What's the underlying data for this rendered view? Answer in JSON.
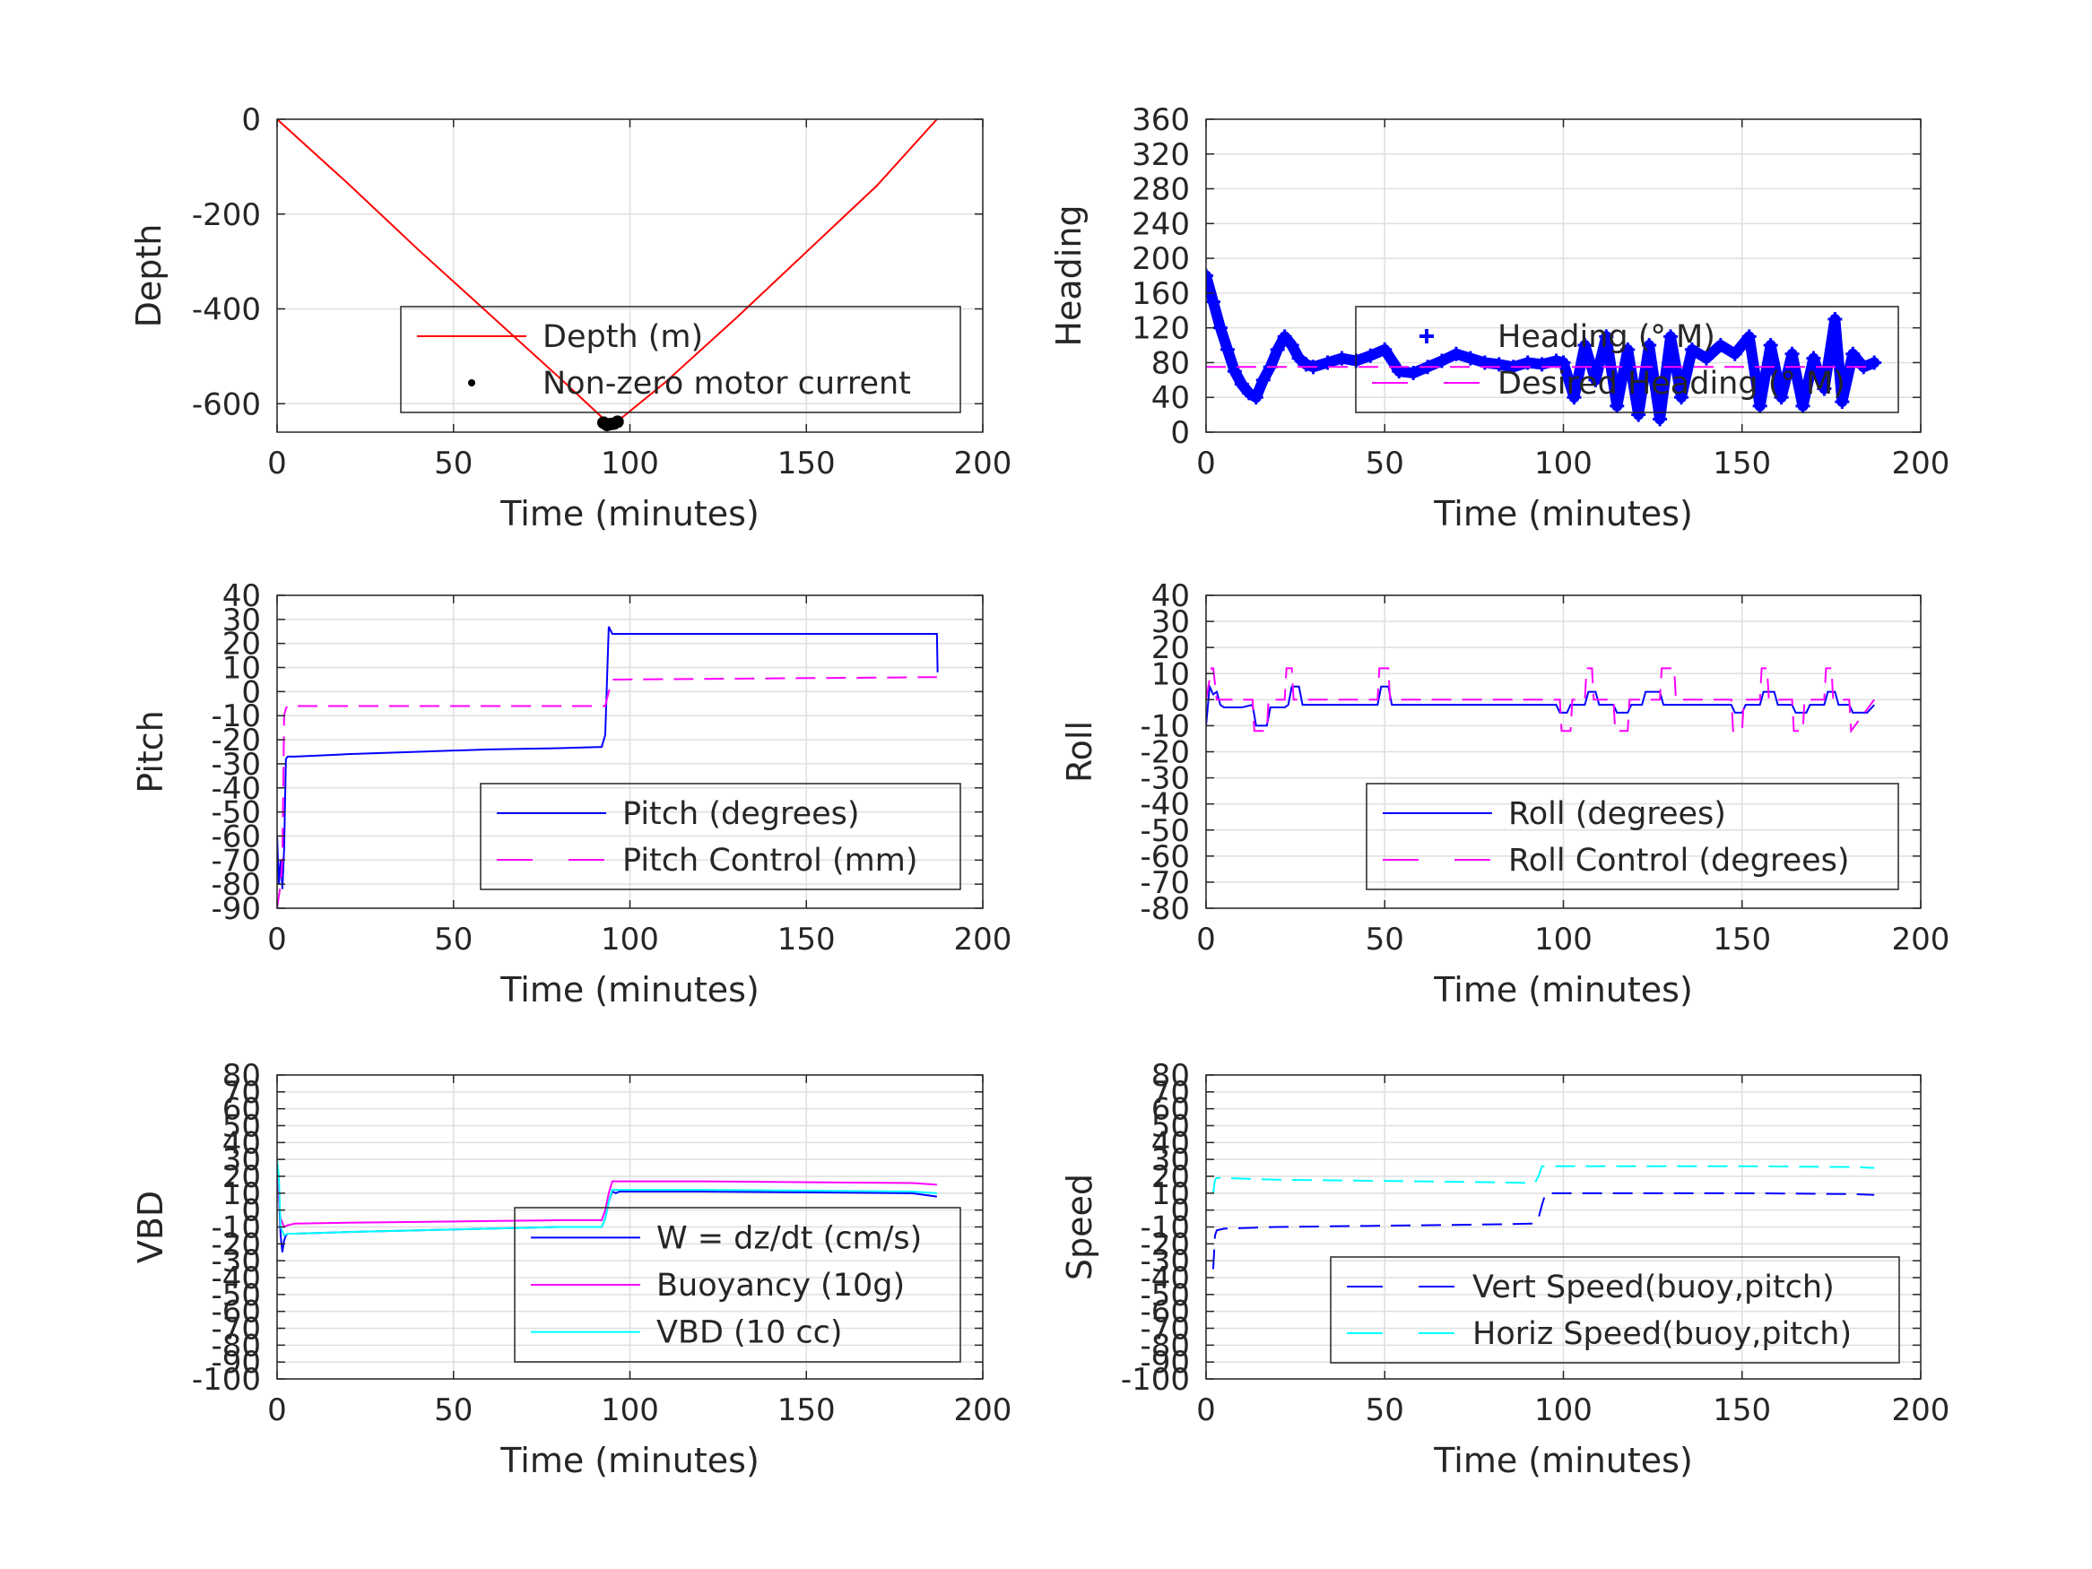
{
  "chart_data": [
    {
      "id": "depth",
      "type": "line",
      "xlabel": "Time (minutes)",
      "ylabel": "Depth",
      "xlim": [
        0,
        200
      ],
      "ylim": [
        -660,
        0
      ],
      "xticks": [
        0,
        50,
        100,
        150,
        200
      ],
      "yticks": [
        0,
        -200,
        -400,
        -600
      ],
      "grid": true,
      "legend_position": "bottom-right",
      "series": [
        {
          "name": "Depth (m)",
          "style": "solid",
          "color": "#ff0000",
          "x": [
            0,
            20,
            40,
            60,
            80,
            93,
            96,
            110,
            130,
            150,
            170,
            187
          ],
          "y": [
            0,
            -135,
            -275,
            -410,
            -545,
            -635,
            -640,
            -555,
            -420,
            -280,
            -140,
            0
          ]
        },
        {
          "name": "Non-zero motor current",
          "style": "dot",
          "color": "#000000",
          "x": [
            92.5,
            93.5,
            94.5,
            95.5,
            96.5
          ],
          "y": [
            -640,
            -645,
            -643,
            -642,
            -638
          ]
        }
      ]
    },
    {
      "id": "heading",
      "type": "line",
      "xlabel": "Time (minutes)",
      "ylabel": "Heading",
      "xlim": [
        0,
        200
      ],
      "ylim": [
        0,
        360
      ],
      "xticks": [
        0,
        50,
        100,
        150,
        200
      ],
      "yticks": [
        0,
        40,
        80,
        120,
        160,
        200,
        240,
        280,
        320,
        360
      ],
      "grid": true,
      "legend_position": "bottom-right",
      "series": [
        {
          "name": "Heading (° M)",
          "style": "plus",
          "color": "#0000ff",
          "x": [
            0,
            2,
            4,
            6,
            8,
            10,
            12,
            14,
            16,
            18,
            20,
            22,
            24,
            26,
            28,
            30,
            34,
            38,
            42,
            46,
            50,
            54,
            58,
            62,
            66,
            70,
            74,
            78,
            82,
            86,
            90,
            94,
            98,
            100,
            103,
            106,
            109,
            112,
            115,
            118,
            121,
            124,
            127,
            130,
            133,
            136,
            140,
            144,
            148,
            152,
            155,
            158,
            161,
            164,
            167,
            170,
            173,
            176,
            178,
            181,
            184,
            187
          ],
          "y": [
            180,
            150,
            120,
            95,
            70,
            55,
            45,
            40,
            60,
            75,
            95,
            110,
            100,
            85,
            78,
            75,
            80,
            85,
            82,
            88,
            95,
            70,
            68,
            75,
            82,
            90,
            85,
            80,
            78,
            75,
            80,
            78,
            82,
            80,
            40,
            100,
            60,
            110,
            30,
            95,
            20,
            100,
            15,
            110,
            40,
            95,
            85,
            100,
            90,
            110,
            30,
            100,
            40,
            90,
            30,
            85,
            50,
            130,
            35,
            90,
            75,
            80
          ]
        },
        {
          "name": "Desired Heading (° M)",
          "style": "dash",
          "color": "#ff00ff",
          "x": [
            0,
            187
          ],
          "y": [
            75,
            75
          ]
        }
      ]
    },
    {
      "id": "pitch",
      "type": "line",
      "xlabel": "Time (minutes)",
      "ylabel": "Pitch",
      "xlim": [
        0,
        200
      ],
      "ylim": [
        -90,
        40
      ],
      "xticks": [
        0,
        50,
        100,
        150,
        200
      ],
      "yticks": [
        40,
        30,
        20,
        10,
        0,
        -10,
        -20,
        -30,
        -40,
        -50,
        -60,
        -70,
        -80,
        -90
      ],
      "grid": true,
      "legend_position": "bottom-right",
      "series": [
        {
          "name": "Pitch (degrees)",
          "style": "solid",
          "color": "#0000ff",
          "x": [
            0,
            0.5,
            1,
            1.5,
            2,
            2.5,
            3,
            5,
            20,
            40,
            60,
            80,
            92,
            93,
            94,
            95,
            97,
            120,
            150,
            180,
            187,
            187.2
          ],
          "y": [
            -60,
            -80,
            -70,
            -82,
            -65,
            -28,
            -27,
            -27,
            -26,
            -25,
            -24,
            -23.5,
            -23,
            -18,
            27,
            24,
            24,
            24,
            24,
            24,
            24,
            8
          ]
        },
        {
          "name": "Pitch Control (mm)",
          "style": "dash",
          "color": "#ff00ff",
          "x": [
            0,
            1,
            1.5,
            2,
            2.5,
            3,
            50,
            92,
            93,
            94,
            95,
            187
          ],
          "y": [
            -90,
            -80,
            -70,
            -10,
            -7,
            -6,
            -6,
            -6,
            -6,
            0,
            5,
            6
          ]
        }
      ]
    },
    {
      "id": "roll",
      "type": "line",
      "xlabel": "Time (minutes)",
      "ylabel": "Roll",
      "xlim": [
        0,
        200
      ],
      "ylim": [
        -80,
        40
      ],
      "xticks": [
        0,
        50,
        100,
        150,
        200
      ],
      "yticks": [
        40,
        30,
        20,
        10,
        0,
        -10,
        -20,
        -30,
        -40,
        -50,
        -60,
        -70,
        -80
      ],
      "grid": true,
      "legend_position": "bottom-right",
      "series": [
        {
          "name": "Roll (degrees)",
          "style": "solid",
          "color": "#0000ff",
          "x": [
            0,
            1,
            2,
            3,
            4,
            5,
            10,
            13,
            14,
            17,
            18,
            22,
            23,
            24,
            26,
            27,
            30,
            48,
            49,
            51,
            52,
            60,
            80,
            92,
            94,
            98,
            99,
            101,
            102,
            106,
            107,
            109,
            110,
            114,
            115,
            118,
            119,
            122,
            123,
            127,
            128,
            131,
            132,
            140,
            147,
            148,
            150,
            151,
            155,
            156,
            159,
            160,
            164,
            165,
            168,
            169,
            173,
            174,
            176,
            177,
            180,
            181,
            185,
            187
          ],
          "y": [
            -10,
            5,
            2,
            3,
            -2,
            -3,
            -3,
            -2,
            -10,
            -10,
            -3,
            -3,
            -2,
            5,
            5,
            -2,
            -2,
            -2,
            5,
            5,
            -2,
            -2,
            -2,
            -2,
            -2,
            -2,
            -5,
            -5,
            -2,
            -2,
            3,
            3,
            -2,
            -2,
            -5,
            -5,
            -2,
            -2,
            3,
            3,
            -2,
            -2,
            -2,
            -2,
            -2,
            -5,
            -5,
            -2,
            -2,
            3,
            3,
            -2,
            -2,
            -5,
            -5,
            -2,
            -2,
            3,
            3,
            -2,
            -2,
            -5,
            -5,
            -2
          ]
        },
        {
          "name": "Roll Control (degrees)",
          "style": "dash",
          "color": "#ff00ff",
          "x": [
            0,
            1.5,
            2,
            3,
            4,
            13,
            13.5,
            17,
            17.5,
            22,
            22.5,
            24,
            24.5,
            48,
            48.5,
            51,
            51.5,
            99,
            99.5,
            102,
            102.5,
            106,
            106.5,
            108,
            108.5,
            114,
            114.5,
            118,
            118.5,
            127,
            127.5,
            131,
            131.5,
            147,
            147.5,
            150,
            150.5,
            155,
            155.5,
            157,
            157.5,
            164,
            164.5,
            167,
            167.5,
            173,
            173.5,
            175,
            175.5,
            180,
            180.5,
            187
          ],
          "y": [
            0,
            12,
            12,
            0,
            0,
            0,
            -12,
            -12,
            0,
            0,
            12,
            12,
            0,
            0,
            12,
            12,
            0,
            0,
            -12,
            -12,
            0,
            0,
            12,
            12,
            0,
            0,
            -12,
            -12,
            0,
            0,
            12,
            12,
            0,
            0,
            -12,
            -12,
            0,
            0,
            12,
            12,
            0,
            0,
            -12,
            -12,
            0,
            0,
            12,
            12,
            0,
            0,
            -12,
            0
          ]
        }
      ]
    },
    {
      "id": "vbd",
      "type": "line",
      "xlabel": "Time (minutes)",
      "ylabel": "VBD",
      "xlim": [
        0,
        200
      ],
      "ylim": [
        -100,
        80
      ],
      "xticks": [
        0,
        50,
        100,
        150,
        200
      ],
      "yticks": [
        80,
        70,
        60,
        50,
        40,
        30,
        20,
        10,
        0,
        -10,
        -20,
        -30,
        -40,
        -50,
        -60,
        -70,
        -80,
        -90,
        -100
      ],
      "grid": true,
      "legend_position": "bottom-right",
      "series": [
        {
          "name": "W = dz/dt (cm/s)",
          "style": "solid",
          "color": "#0000ff",
          "x": [
            0,
            0.5,
            1,
            1.5,
            2,
            2.5,
            3,
            5,
            20,
            40,
            60,
            80,
            92,
            93,
            94,
            95,
            96,
            97,
            120,
            150,
            180,
            187
          ],
          "y": [
            25,
            10,
            -15,
            -25,
            -18,
            -15,
            -14,
            -14,
            -13,
            -12,
            -11,
            -10,
            -10,
            -5,
            5,
            11,
            10,
            11,
            11,
            10.5,
            10,
            8
          ]
        },
        {
          "name": "Buoyancy (10g)",
          "style": "solid",
          "color": "#ff00ff",
          "x": [
            0,
            1,
            2,
            3,
            5,
            20,
            40,
            60,
            80,
            92,
            93,
            94,
            95,
            96,
            120,
            150,
            180,
            187
          ],
          "y": [
            20,
            -5,
            -10,
            -9,
            -8,
            -7.5,
            -7,
            -6.5,
            -6,
            -6,
            0,
            10,
            17,
            17,
            17,
            16.5,
            16,
            15
          ]
        },
        {
          "name": "VBD (10 cc)",
          "style": "solid",
          "color": "#00ffff",
          "x": [
            0,
            0.5,
            1,
            2,
            3,
            5,
            20,
            40,
            60,
            80,
            92,
            93,
            94,
            95,
            96,
            120,
            150,
            180,
            187
          ],
          "y": [
            30,
            20,
            -10,
            -15,
            -14,
            -14,
            -13,
            -12,
            -11,
            -10,
            -10,
            -5,
            5,
            12,
            12,
            12,
            11.5,
            11,
            10
          ]
        }
      ]
    },
    {
      "id": "speed",
      "type": "line",
      "xlabel": "Time (minutes)",
      "ylabel": "Speed",
      "xlim": [
        0,
        200
      ],
      "ylim": [
        -100,
        80
      ],
      "xticks": [
        0,
        50,
        100,
        150,
        200
      ],
      "yticks": [
        80,
        70,
        60,
        50,
        40,
        30,
        20,
        10,
        0,
        -10,
        -20,
        -30,
        -40,
        -50,
        -60,
        -70,
        -80,
        -90,
        -100
      ],
      "grid": true,
      "legend_position": "bottom-right",
      "series": [
        {
          "name": "Vert Speed(buoy,pitch)",
          "style": "dash",
          "color": "#0000ff",
          "x": [
            2,
            2.5,
            3,
            5,
            20,
            40,
            60,
            80,
            92,
            93,
            94,
            95,
            96,
            120,
            150,
            180,
            187
          ],
          "y": [
            -35,
            -15,
            -12,
            -11,
            -10,
            -9.5,
            -9,
            -8.5,
            -8,
            -5,
            3,
            10,
            10,
            10,
            10,
            9.5,
            9
          ]
        },
        {
          "name": "Horiz Speed(buoy,pitch)",
          "style": "dash",
          "color": "#00ffff",
          "x": [
            2,
            2.5,
            3,
            5,
            20,
            40,
            60,
            80,
            92,
            93,
            94,
            95,
            96,
            120,
            150,
            180,
            187
          ],
          "y": [
            10,
            18,
            19,
            19,
            18,
            17.5,
            17,
            16.5,
            16,
            20,
            26,
            26,
            26,
            26,
            26,
            25.5,
            25
          ]
        }
      ]
    }
  ]
}
